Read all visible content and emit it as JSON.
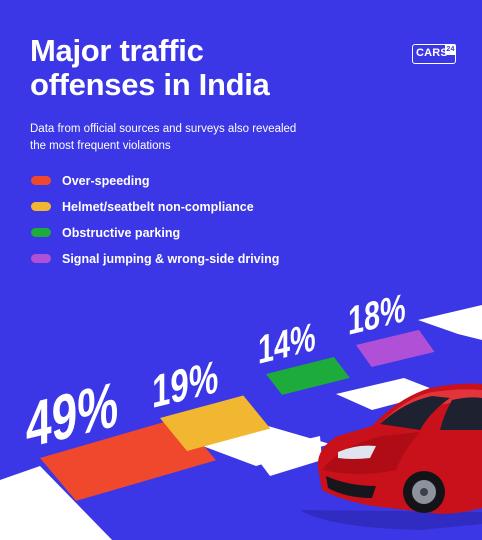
{
  "header": {
    "title_lines": [
      "Major traffic",
      "offenses in India"
    ],
    "logo_text": "CARS",
    "logo_number": "24",
    "subtitle_lines": [
      "Data from official sources and surveys also revealed",
      "the most frequent violations"
    ]
  },
  "chart_data": {
    "type": "bar",
    "title": "Major traffic offenses in India",
    "categories": [
      "Over-speeding",
      "Helmet/seatbelt non-compliance",
      "Obstructive parking",
      "Signal jumping & wrong-side driving"
    ],
    "values": [
      49,
      19,
      14,
      18
    ],
    "value_labels": [
      "49%",
      "19%",
      "14%",
      "18%"
    ],
    "colors": [
      "#f0482c",
      "#f2b731",
      "#1dab3c",
      "#b050d6"
    ],
    "legend_position": "top-left",
    "grid": false
  },
  "theme": {
    "background": "#3b36e6",
    "road_stripe": "#ffffff",
    "car_body": "#c8111b"
  },
  "icons": [
    "car-illustration",
    "cars24-logo"
  ]
}
